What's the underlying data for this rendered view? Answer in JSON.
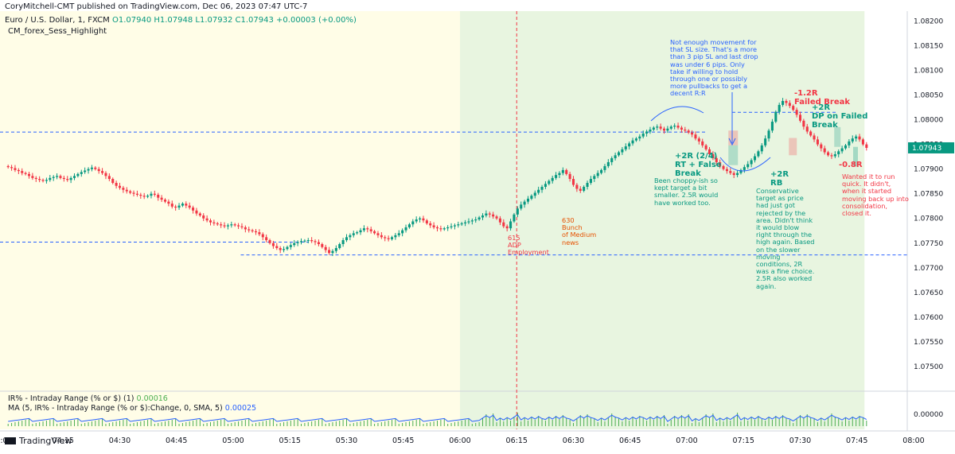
{
  "header": {
    "published_line": "CoryMitchell-CMT published on TradingView.com, Dec 06, 2023 07:47 UTC-7",
    "symbol_line": "Euro / U.S. Dollar, 1, FXCM",
    "ohlc": "O1.07940 H1.07948 L1.07932 C1.07943 +0.00003 (+0.00%)",
    "indicator": "CM_forex_Sess_Highlight"
  },
  "subpane": {
    "ir_label": "IR% - Intraday Range (% or $) (1)",
    "ir_value": "0.00016",
    "ma_label": "MA (5, IR% - Intraday Range (% or $):Change, 0, SMA, 5)",
    "ma_value": "0.00025",
    "axis_label": "0.00000"
  },
  "footer": {
    "logo": "TradingView"
  },
  "colors": {
    "up": "#089981",
    "down": "#f23645",
    "note_blue": "#2962ff",
    "note_green": "#089981",
    "note_red": "#f23645",
    "note_orange": "#e65100",
    "asia_bg": "#fffde7",
    "london_bg": "#e8f5e0",
    "price_tag": "#089981"
  },
  "price_tag": "1.07943",
  "annotations": {
    "top_note": "Not enough movement for\nthat SL size. That's a more\nthan 3 pip SL and last drop\nwas under 6 pips. Only\ntake if willing to hold\nthrough one or possibly\nmore pullbacks to get a\ndecent R:R",
    "rt_title": "+2R (2/4)\nRT + False\nBreak",
    "rt_note": "Been choppy-ish so\nkept target a bit\nsmaller. 2.5R would\nhave worked too.",
    "rb_title": "+2R\nRB",
    "rb_note": "Conservative\ntarget as price\nhad just got\nrejected by the\narea. Didn't think\nit would blow\nright through the\nhigh again. Based\non the slower\nmoving\nconditions, 2R\nwas a fine choice.\n2.5R also worked\nagain.",
    "fb_title": "-1.2R\nFailed Break",
    "dp_title": "+2R\nDP on Failed\nBreak",
    "loss_title": "-0.8R",
    "loss_note": "Wanted it to run\nquick. It didn't,\nwhen it started\nmoving back up into\nconsolidation,\nclosed it.",
    "adp": "615\nADP\nEmployment",
    "news": "630\nBunch\nof Medium\nnews"
  },
  "chart_data": {
    "type": "candlestick",
    "y_ticks": [
      "1.08200",
      "1.08150",
      "1.08100",
      "1.08050",
      "1.08000",
      "1.07950",
      "1.07900",
      "1.07850",
      "1.07800",
      "1.07750",
      "1.07700",
      "1.07650",
      "1.07600",
      "1.07550",
      "1.07500"
    ],
    "ylim": [
      1.0745,
      1.0822
    ],
    "x_ticks": [
      ":00",
      "04:15",
      "04:30",
      "04:45",
      "05:00",
      "05:15",
      "05:30",
      "05:45",
      "06:00",
      "06:15",
      "06:30",
      "06:45",
      "07:00",
      "07:15",
      "07:30",
      "07:45",
      "08:00"
    ],
    "x_tick_minutes": [
      240,
      255,
      270,
      285,
      300,
      315,
      330,
      345,
      360,
      375,
      390,
      405,
      420,
      435,
      450,
      465,
      480
    ],
    "x_start_min": 240,
    "x_end_min": 480,
    "asia_session_end_min": 360,
    "london_session_end_min": 467,
    "adp_line_min": 375,
    "levels": [
      1.07975,
      1.07752,
      1.07726,
      1.08015
    ],
    "closes": [
      1.07904,
      1.07902,
      1.07898,
      1.07896,
      1.07892,
      1.0789,
      1.07886,
      1.07882,
      1.0788,
      1.07878,
      1.07876,
      1.07878,
      1.07882,
      1.07884,
      1.07886,
      1.07882,
      1.0788,
      1.07878,
      1.07882,
      1.07886,
      1.0789,
      1.07894,
      1.07897,
      1.079,
      1.07903,
      1.079,
      1.07896,
      1.07892,
      1.07886,
      1.0788,
      1.07872,
      1.07866,
      1.07862,
      1.07858,
      1.07855,
      1.07852,
      1.0785,
      1.07848,
      1.07846,
      1.07844,
      1.07846,
      1.0785,
      1.07848,
      1.07842,
      1.07838,
      1.07834,
      1.0783,
      1.07824,
      1.07822,
      1.07826,
      1.0783,
      1.07826,
      1.07822,
      1.07816,
      1.0781,
      1.07806,
      1.078,
      1.07796,
      1.07792,
      1.0779,
      1.07788,
      1.07786,
      1.07784,
      1.07786,
      1.07788,
      1.07786,
      1.07784,
      1.07782,
      1.07778,
      1.07776,
      1.07774,
      1.07772,
      1.07768,
      1.07762,
      1.07756,
      1.0775,
      1.07744,
      1.0774,
      1.07736,
      1.07738,
      1.07742,
      1.07746,
      1.0775,
      1.07752,
      1.07754,
      1.07755,
      1.07756,
      1.07754,
      1.07752,
      1.07748,
      1.07742,
      1.07736,
      1.0773,
      1.07734,
      1.0774,
      1.07748,
      1.07756,
      1.07762,
      1.07766,
      1.0777,
      1.07772,
      1.07776,
      1.0778,
      1.07778,
      1.07774,
      1.0777,
      1.07766,
      1.07762,
      1.0776,
      1.07758,
      1.07762,
      1.07766,
      1.0777,
      1.07776,
      1.07782,
      1.07788,
      1.07794,
      1.07798,
      1.078,
      1.07796,
      1.0779,
      1.07786,
      1.07782,
      1.0778,
      1.07778,
      1.0778,
      1.07782,
      1.07784,
      1.07786,
      1.07788,
      1.0779,
      1.07792,
      1.07794,
      1.07796,
      1.07798,
      1.07802,
      1.07806,
      1.0781,
      1.07808,
      1.07804,
      1.078,
      1.07792,
      1.07784,
      1.0778,
      1.07794,
      1.07808,
      1.0782,
      1.07828,
      1.07834,
      1.0784,
      1.07846,
      1.07852,
      1.07858,
      1.07864,
      1.0787,
      1.07876,
      1.07882,
      1.07888,
      1.07892,
      1.07898,
      1.0789,
      1.0788,
      1.07868,
      1.0786,
      1.07856,
      1.07864,
      1.07872,
      1.0788,
      1.07886,
      1.07892,
      1.07898,
      1.07906,
      1.07914,
      1.07922,
      1.07928,
      1.07934,
      1.0794,
      1.07946,
      1.07952,
      1.07958,
      1.07962,
      1.07966,
      1.07972,
      1.07976,
      1.0798,
      1.07984,
      1.07986,
      1.07982,
      1.07978,
      1.07982,
      1.07986,
      1.07988,
      1.07984,
      1.0798,
      1.07978,
      1.07974,
      1.0797,
      1.07962,
      1.07956,
      1.07948,
      1.0794,
      1.0793,
      1.07922,
      1.07914,
      1.07906,
      1.079,
      1.07896,
      1.07892,
      1.07888,
      1.07892,
      1.07898,
      1.07904,
      1.0791,
      1.07918,
      1.07926,
      1.07936,
      1.07948,
      1.07962,
      1.07978,
      1.07996,
      1.08016,
      1.0803,
      1.08038,
      1.08034,
      1.08028,
      1.0802,
      1.0801,
      1.07998,
      1.07986,
      1.07976,
      1.07968,
      1.0796,
      1.0795,
      1.07942,
      1.07934,
      1.07928,
      1.07926,
      1.0793,
      1.07936,
      1.07942,
      1.07948,
      1.07956,
      1.07962,
      1.07966,
      1.0796,
      1.0795,
      1.07943
    ],
    "volume_scale_note": "IR% histogram"
  }
}
